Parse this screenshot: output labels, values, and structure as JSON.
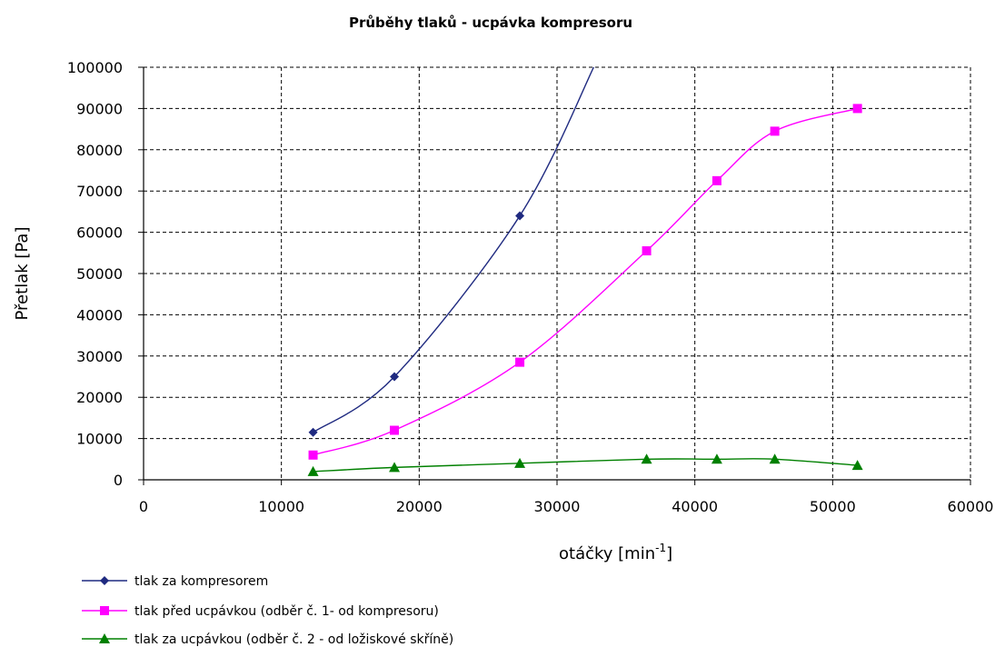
{
  "chart_data": {
    "type": "line",
    "title": "Průběhy tlaků - ucpávka kompresoru",
    "xlabel": "otáčky [min",
    "xlabel_sup": "-1",
    "xlabel_suffix": "]",
    "ylabel": "Přetlak [Pa]",
    "xlim": [
      0,
      60000
    ],
    "ylim": [
      0,
      100000
    ],
    "x_ticks": [
      0,
      10000,
      20000,
      30000,
      40000,
      50000,
      60000
    ],
    "y_ticks": [
      0,
      10000,
      20000,
      30000,
      40000,
      50000,
      60000,
      70000,
      80000,
      90000,
      100000
    ],
    "grid": true,
    "grid_style": "dashed",
    "legend_placement": "bottom-left",
    "series": [
      {
        "name": "tlak za kompresorem",
        "color": "#1f2a80",
        "marker": "diamond",
        "x": [
          12300,
          18200,
          27300
        ],
        "y": [
          11500,
          25000,
          64000
        ],
        "curve_extension": {
          "x": 32800,
          "y": 101000
        }
      },
      {
        "name": "tlak před ucpávkou (odběr č. 1- od kompresoru)",
        "color": "#ff00ff",
        "marker": "square",
        "x": [
          12300,
          18200,
          27300,
          36500,
          41600,
          45800,
          51800
        ],
        "y": [
          6000,
          12000,
          28500,
          55500,
          72500,
          84500,
          90000
        ]
      },
      {
        "name": "tlak za ucpávkou (odběr č. 2 - od ložiskové skříně)",
        "color": "#008000",
        "marker": "triangle",
        "x": [
          12300,
          18200,
          27300,
          36500,
          41600,
          45800,
          51800
        ],
        "y": [
          2000,
          3000,
          4000,
          5000,
          5000,
          5000,
          3500
        ]
      }
    ]
  }
}
